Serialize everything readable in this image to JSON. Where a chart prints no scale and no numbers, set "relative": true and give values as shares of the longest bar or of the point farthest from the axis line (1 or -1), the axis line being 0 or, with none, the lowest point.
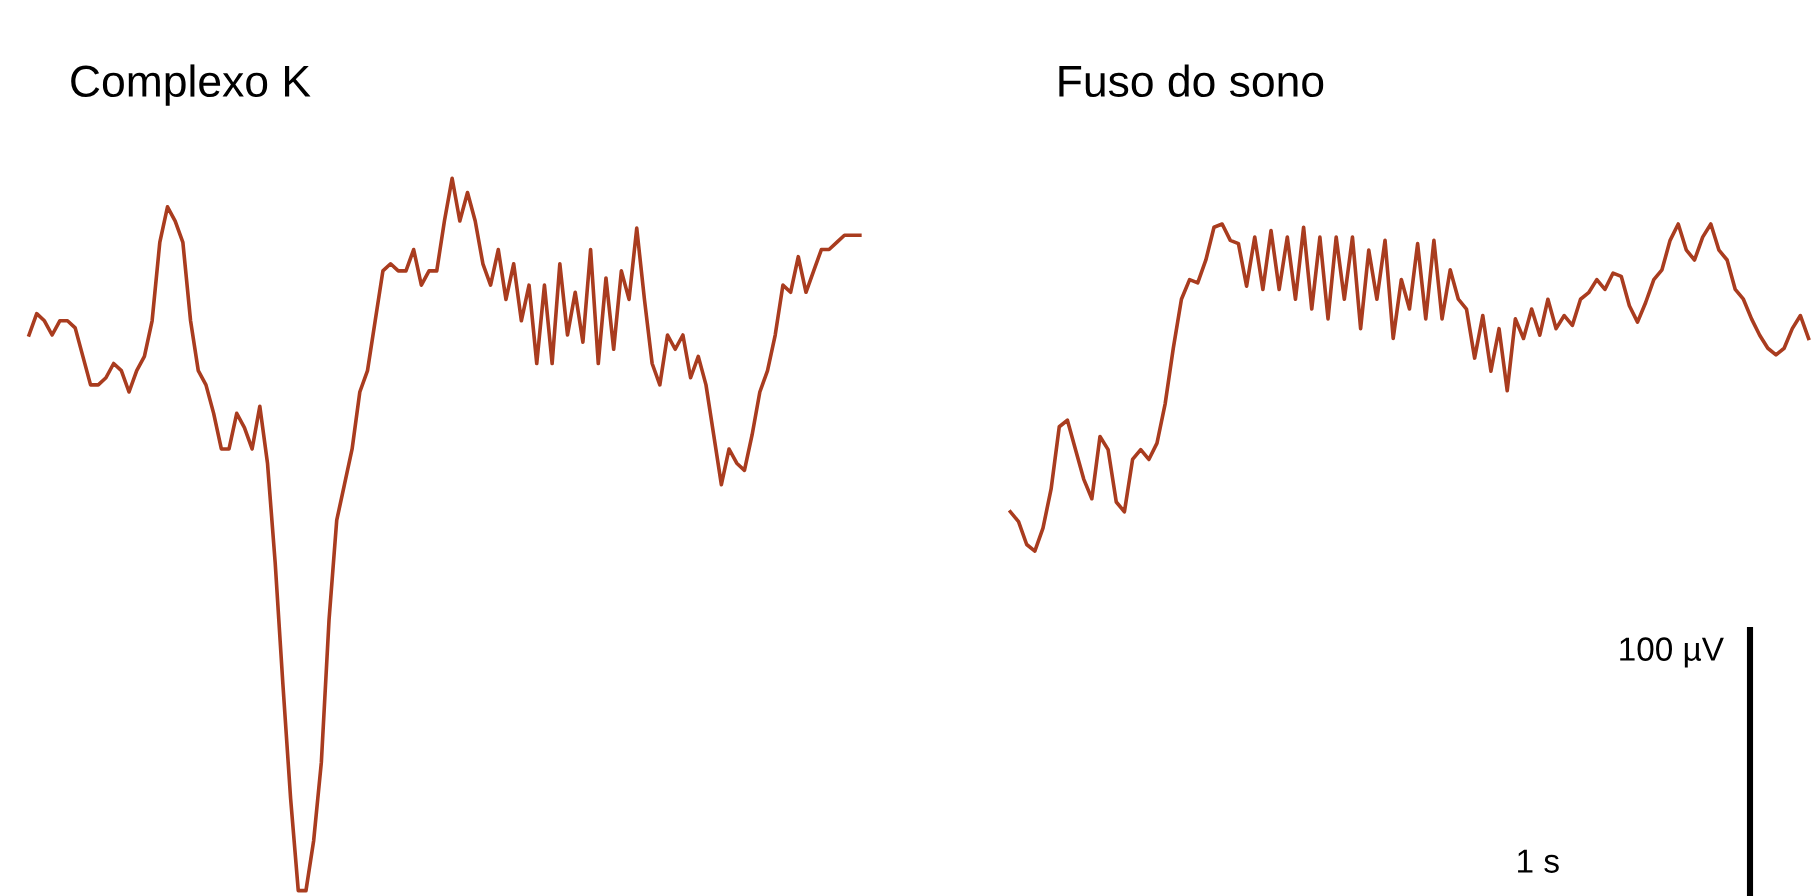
{
  "chart_data": [
    {
      "type": "line",
      "title": "Complexo K",
      "relative": true,
      "color": "#a93c1f",
      "categories": [
        null,
        null,
        null,
        null,
        null,
        null,
        null,
        null,
        null,
        null,
        null,
        null,
        null,
        null,
        null,
        null,
        null,
        null,
        null,
        null,
        null,
        null,
        null,
        null,
        null,
        null,
        null,
        null,
        null,
        null,
        null,
        null,
        null,
        null,
        null,
        null,
        null,
        null,
        null,
        null,
        null,
        null,
        null,
        null,
        null,
        null,
        null,
        null,
        null,
        null,
        null,
        null,
        null,
        null,
        null,
        null,
        null,
        null,
        null,
        null,
        null,
        null,
        null,
        null,
        null,
        null,
        null,
        null,
        null,
        null,
        null,
        null,
        null,
        null,
        null,
        null,
        null,
        null,
        null,
        null,
        null,
        null,
        null,
        null,
        null,
        null,
        null,
        null,
        null,
        null,
        null,
        null,
        null,
        null,
        null,
        null,
        null,
        null,
        null,
        null,
        null,
        null,
        null,
        null,
        null,
        null,
        null,
        null,
        null
      ],
      "values": [
        0.78,
        0.81,
        0.8,
        0.78,
        0.8,
        0.8,
        0.79,
        0.75,
        0.71,
        0.71,
        0.72,
        0.74,
        0.73,
        0.7,
        0.73,
        0.75,
        0.8,
        0.91,
        0.96,
        0.94,
        0.91,
        0.8,
        0.73,
        0.71,
        0.67,
        0.62,
        0.62,
        0.67,
        0.65,
        0.62,
        0.68,
        0.6,
        0.46,
        0.29,
        0.13,
        0,
        0,
        0.07,
        0.18,
        0.38,
        0.52,
        0.57,
        0.62,
        0.7,
        0.73,
        0.8,
        0.87,
        0.88,
        0.87,
        0.87,
        0.9,
        0.85,
        0.87,
        0.87,
        0.94,
        1.0,
        0.94,
        0.98,
        0.94,
        0.88,
        0.85,
        0.9,
        0.83,
        0.88,
        0.8,
        0.85,
        0.74,
        0.85,
        0.74,
        0.88,
        0.78,
        0.84,
        0.77,
        0.9,
        0.74,
        0.86,
        0.76,
        0.87,
        0.83,
        0.93,
        0.83,
        0.74,
        0.71,
        0.78,
        0.76,
        0.78,
        0.72,
        0.75,
        0.71,
        0.64,
        0.57,
        0.62,
        0.6,
        0.59,
        0.64,
        0.7,
        0.73,
        0.78,
        0.85,
        0.84,
        0.89,
        0.84,
        0.87,
        0.9,
        0.9,
        0.91,
        0.92,
        0.92,
        0.92
      ]
    },
    {
      "type": "line",
      "title": "Fuso do sono",
      "relative": true,
      "color": "#a93c1f",
      "categories": [
        null,
        null,
        null,
        null,
        null,
        null,
        null,
        null,
        null,
        null,
        null,
        null,
        null,
        null,
        null,
        null,
        null,
        null,
        null,
        null,
        null,
        null,
        null,
        null,
        null,
        null,
        null,
        null,
        null,
        null,
        null,
        null,
        null,
        null,
        null,
        null,
        null,
        null,
        null,
        null,
        null,
        null,
        null,
        null,
        null,
        null,
        null,
        null,
        null,
        null,
        null,
        null,
        null,
        null,
        null,
        null,
        null,
        null,
        null,
        null,
        null,
        null,
        null,
        null,
        null,
        null,
        null,
        null,
        null,
        null,
        null,
        null,
        null,
        null,
        null,
        null,
        null,
        null,
        null,
        null,
        null,
        null,
        null,
        null,
        null,
        null,
        null,
        null,
        null,
        null,
        null,
        null,
        null,
        null,
        null,
        null,
        null,
        null,
        null
      ],
      "values": [
        0.12,
        0.09,
        0.02,
        0,
        0.07,
        0.19,
        0.38,
        0.4,
        0.31,
        0.22,
        0.16,
        0.35,
        0.31,
        0.15,
        0.12,
        0.28,
        0.31,
        0.28,
        0.33,
        0.45,
        0.62,
        0.77,
        0.83,
        0.82,
        0.89,
        0.99,
        1.0,
        0.95,
        0.94,
        0.81,
        0.96,
        0.8,
        0.98,
        0.8,
        0.96,
        0.77,
        0.99,
        0.74,
        0.96,
        0.71,
        0.96,
        0.77,
        0.96,
        0.68,
        0.92,
        0.77,
        0.95,
        0.65,
        0.83,
        0.74,
        0.94,
        0.71,
        0.95,
        0.71,
        0.86,
        0.77,
        0.74,
        0.59,
        0.72,
        0.55,
        0.68,
        0.49,
        0.71,
        0.65,
        0.74,
        0.66,
        0.77,
        0.68,
        0.72,
        0.69,
        0.77,
        0.79,
        0.83,
        0.8,
        0.85,
        0.84,
        0.75,
        0.7,
        0.76,
        0.83,
        0.86,
        0.95,
        1.0,
        0.92,
        0.89,
        0.96,
        1.0,
        0.92,
        0.89,
        0.8,
        0.77,
        0.71,
        0.66,
        0.62,
        0.6,
        0.62,
        0.68,
        0.72,
        0.65
      ],
      "annotations": [
        "100 µV",
        "1 s"
      ]
    }
  ]
}
